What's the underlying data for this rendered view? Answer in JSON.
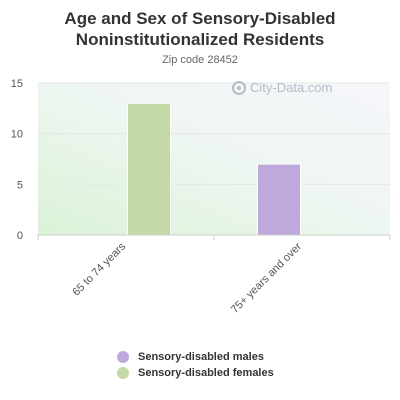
{
  "chart_data": {
    "type": "bar",
    "title": "Age and Sex of Sensory-Disabled Noninstitutionalized Residents",
    "subtitle": "Zip code 28452",
    "categories": [
      "65 to 74 years",
      "75+ years and over"
    ],
    "series": [
      {
        "name": "Sensory-disabled males",
        "values": [
          0,
          7
        ],
        "color": "#bfa9dc"
      },
      {
        "name": "Sensory-disabled females",
        "values": [
          13,
          0
        ],
        "color": "#c5d9a8"
      }
    ],
    "y_ticks": [
      0,
      5,
      10,
      15
    ],
    "ylim": [
      0,
      15
    ],
    "grid": true,
    "legend_position": "bottom"
  },
  "watermark": "City-Data.com"
}
